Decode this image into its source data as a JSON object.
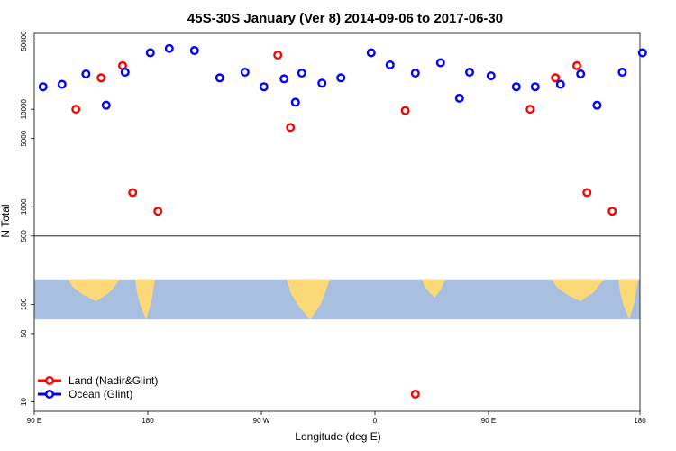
{
  "chart_data": {
    "type": "scatter",
    "title": "45S-30S January (Ver 8)   2014-09-06 to 2017-06-30",
    "xlabel": "Longitude (deg E)",
    "ylabel": "N Total",
    "y_scale": "log",
    "ylim": [
      8,
      60000
    ],
    "x_ticks": [
      "90 E",
      "180",
      "90 W",
      "0",
      "90 E",
      "180"
    ],
    "y_ticks": [
      {
        "value": 10,
        "label": "10"
      },
      {
        "value": 50,
        "label": "50"
      },
      {
        "value": 100,
        "label": "100"
      },
      {
        "value": 500,
        "label": "500"
      },
      {
        "value": 1000,
        "label": "1000"
      },
      {
        "value": 5000,
        "label": "5000"
      },
      {
        "value": 10000,
        "label": "10000"
      },
      {
        "value": 50000,
        "label": "50000"
      }
    ],
    "reference_line_y": 500,
    "legend_position": "bottom-left",
    "map_strip": {
      "ocean_color": "#A9BFDF",
      "land_color": "#FBD978",
      "y_range": [
        70,
        180
      ]
    },
    "series": [
      {
        "name": "Land (Nadir&Glint)",
        "color": "#FF0000",
        "points": [
          {
            "x": 123,
            "y": 10000
          },
          {
            "x": 143,
            "y": 21000
          },
          {
            "x": 160,
            "y": 28000
          },
          {
            "x": 168,
            "y": 1400
          },
          {
            "x": 188,
            "y": 900
          },
          {
            "x": 283,
            "y": 36000
          },
          {
            "x": 293,
            "y": 6500
          },
          {
            "x": 384,
            "y": 9700
          },
          {
            "x": 392,
            "y": 12
          },
          {
            "x": 483,
            "y": 10000
          },
          {
            "x": 503,
            "y": 21000
          },
          {
            "x": 520,
            "y": 28000
          },
          {
            "x": 528,
            "y": 1400
          },
          {
            "x": 548,
            "y": 900
          }
        ]
      },
      {
        "name": "Ocean (Glint)",
        "color": "#0000FF",
        "points": [
          {
            "x": 97,
            "y": 17000
          },
          {
            "x": 112,
            "y": 18000
          },
          {
            "x": 131,
            "y": 23000
          },
          {
            "x": 147,
            "y": 11000
          },
          {
            "x": 162,
            "y": 24000
          },
          {
            "x": 182,
            "y": 38000
          },
          {
            "x": 197,
            "y": 42000
          },
          {
            "x": 217,
            "y": 40000
          },
          {
            "x": 237,
            "y": 21000
          },
          {
            "x": 257,
            "y": 24000
          },
          {
            "x": 272,
            "y": 17000
          },
          {
            "x": 288,
            "y": 20500
          },
          {
            "x": 302,
            "y": 23500
          },
          {
            "x": 297,
            "y": 11800
          },
          {
            "x": 318,
            "y": 18500
          },
          {
            "x": 333,
            "y": 21000
          },
          {
            "x": 357,
            "y": 38000
          },
          {
            "x": 372,
            "y": 28500
          },
          {
            "x": 392,
            "y": 23500
          },
          {
            "x": 412,
            "y": 30000
          },
          {
            "x": 427,
            "y": 13000
          },
          {
            "x": 435,
            "y": 24000
          },
          {
            "x": 452,
            "y": 22000
          },
          {
            "x": 472,
            "y": 17000
          },
          {
            "x": 487,
            "y": 17000
          },
          {
            "x": 507,
            "y": 18000
          },
          {
            "x": 523,
            "y": 23000
          },
          {
            "x": 536,
            "y": 11000
          },
          {
            "x": 556,
            "y": 24000
          },
          {
            "x": 572,
            "y": 38000
          }
        ]
      }
    ]
  }
}
